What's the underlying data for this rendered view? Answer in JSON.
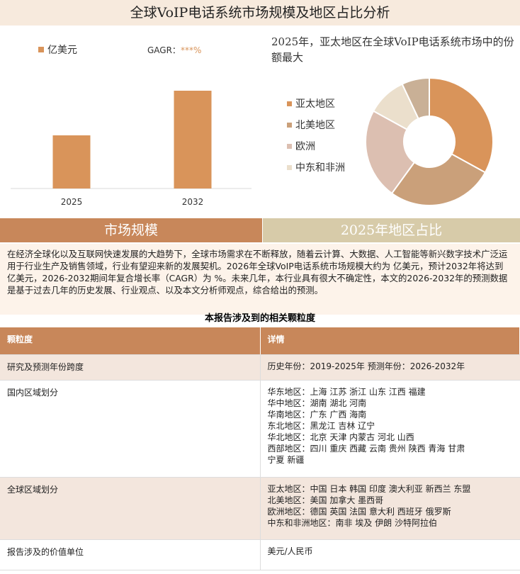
{
  "title": "全球VoIP电话系统市场规模及地区占比分析",
  "chart_data": [
    {
      "type": "bar",
      "categories": [
        "2025",
        "2032"
      ],
      "values": [
        75,
        138
      ],
      "color": "#d9945a",
      "ylim": [
        0,
        160
      ],
      "legend_label": "亿美元",
      "gagr_label": "GAGR：",
      "gagr_value": "***%"
    },
    {
      "type": "pie",
      "title": "2025年，亚太地区在全球VoIP电话系统市场中的份额最大",
      "categories": [
        "亚太地区",
        "北美地区",
        "欧洲",
        "中东和非洲",
        null
      ],
      "values": [
        33,
        27,
        23,
        10,
        7
      ],
      "colors": [
        "#d9945a",
        "#caa07a",
        "#dcbfb1",
        "#ebdfcc",
        "#c9b096"
      ]
    }
  ],
  "sections": [
    "市场规模",
    "2025年地区占比"
  ],
  "intro": "在经济全球化以及互联网快速发展的大趋势下，全球市场需求在不断释放，随着云计算、大数据、人工智能等新兴数字技术广泛运用于行业生产及销售领域，行业有望迎来新的发展契机。2026年全球VoIP电话系统市场规模大约为 亿美元，预计2032年将达到 亿美元，2026-2032期间年复合增长率（CAGR）为 %。未来几年，本行业具有很大不确定性，本文的2026-2032年的预测数据是基于过去几年的历史发展、行业观点、以及本文分析师观点，综合给出的预测。",
  "table": {
    "title": "本报告涉及到的相关颗粒度",
    "header": [
      "颗粒度",
      "详情"
    ],
    "rows": [
      [
        "研究及预测年份跨度",
        [
          "历史年份：2019-2025年 预测年份：2026-2032年"
        ]
      ],
      [
        "国内区域划分",
        [
          "华东地区：上海  江苏  浙江  山东  江西  福建",
          "华中地区：湖南  湖北  河南",
          "华南地区：广东  广西  海南",
          "东北地区：黑龙江  吉林  辽宁",
          "华北地区：北京  天津  内蒙古  河北  山西",
          "西部地区：四川  重庆  西藏  云南  贵州  陕西  青海  甘肃",
          "宁夏  新疆"
        ]
      ],
      [
        "全球区域划分",
        [
          "亚太地区：中国  日本  韩国  印度  澳大利亚  新西兰  东盟",
          "北美地区：美国  加拿大  墨西哥",
          "欧洲地区：德国  英国  法国  意大利  西班牙  俄罗斯",
          "中东和非洲地区：南非  埃及  伊朗  沙特阿拉伯"
        ]
      ],
      [
        "报告涉及的价值单位",
        [
          "美元/人民币"
        ]
      ]
    ]
  }
}
